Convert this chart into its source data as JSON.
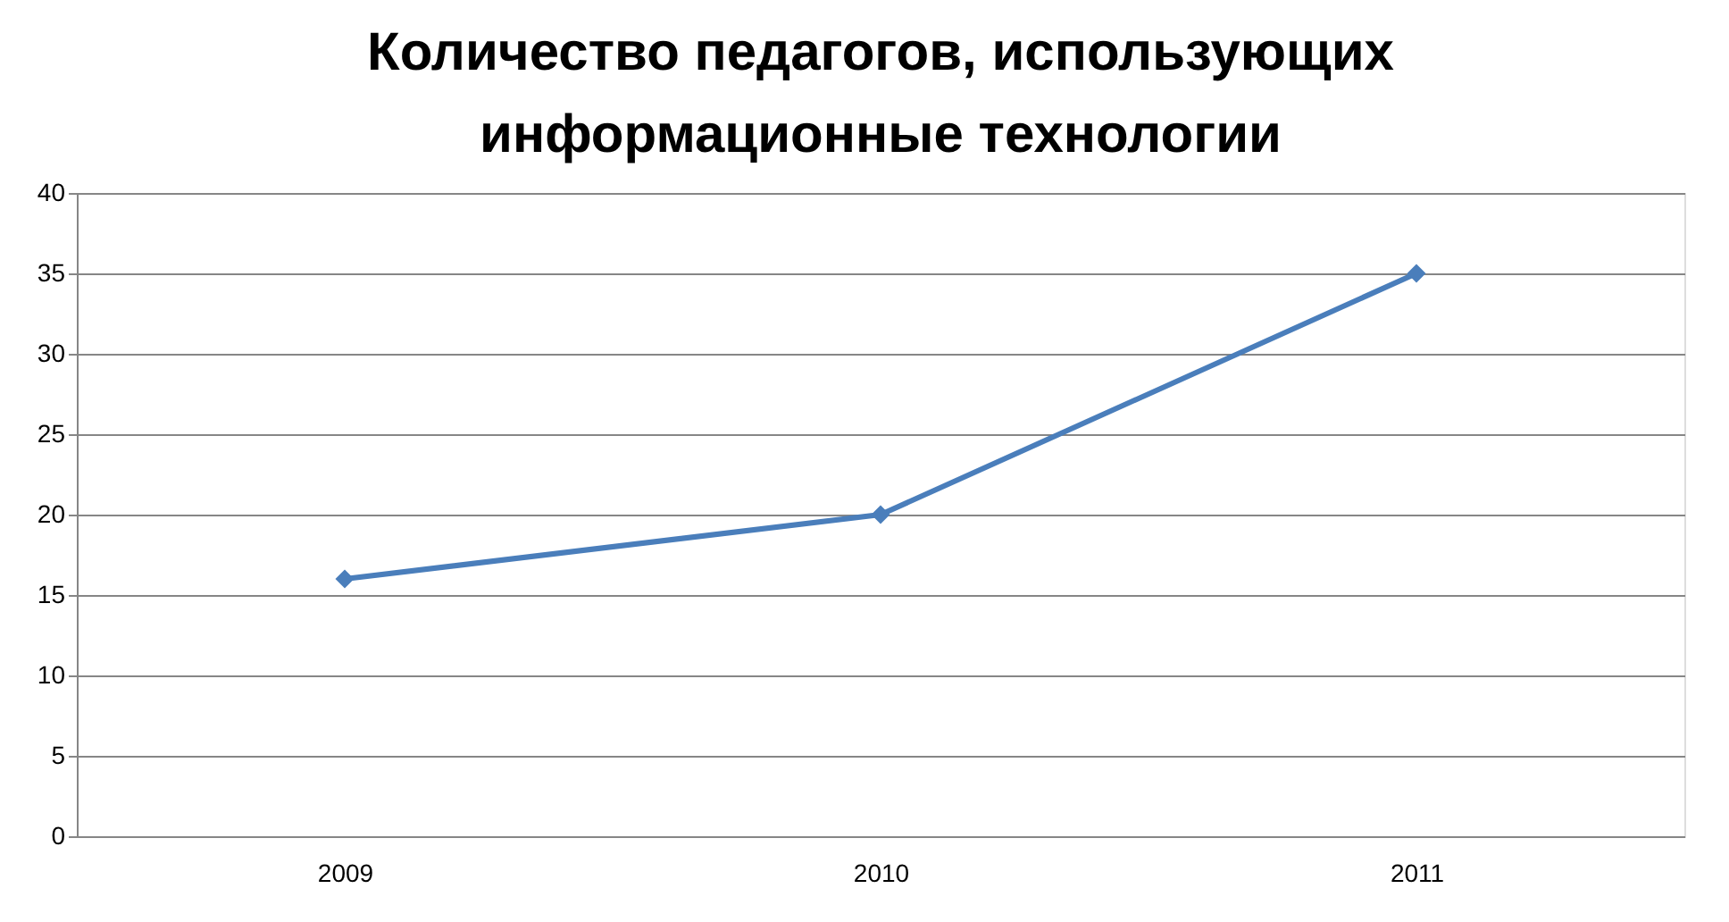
{
  "chart_data": {
    "type": "line",
    "title": "Количество педагогов, использующих\nинформационные технологии",
    "categories": [
      "2009",
      "2010",
      "2011"
    ],
    "series": [
      {
        "color": "#4a7ebb",
        "values": [
          16,
          20,
          35
        ]
      }
    ],
    "ylim": [
      0,
      40
    ],
    "yticks": [
      0,
      5,
      10,
      15,
      20,
      25,
      30,
      35,
      40
    ],
    "grid": "y",
    "marker": "diamond",
    "line_style": "solid"
  }
}
